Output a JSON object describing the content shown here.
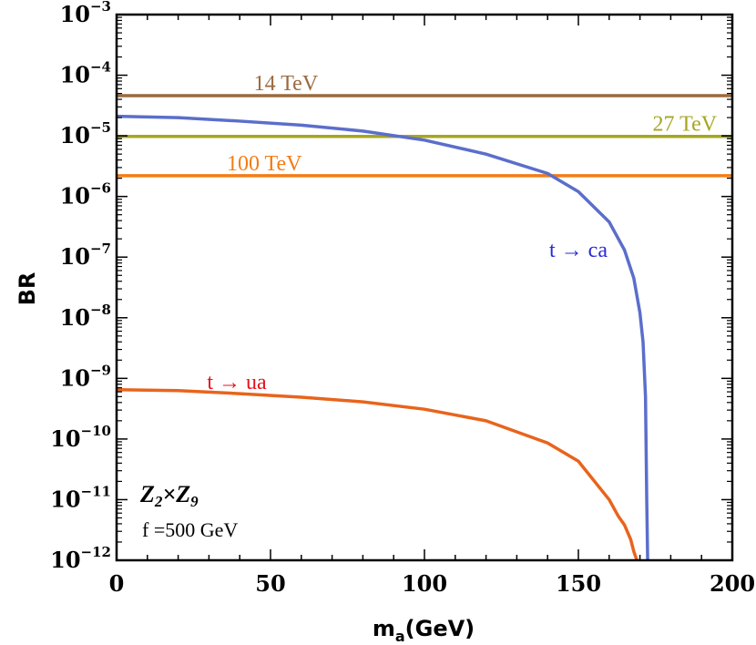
{
  "chart_data": {
    "type": "line",
    "xlabel": "m",
    "xlabel_sub": "a",
    "xlabel_unit": "(GeV)",
    "ylabel": "BR",
    "xlim": [
      0,
      200
    ],
    "ylim_log10": [
      -12,
      -3
    ],
    "y_scale": "log",
    "x_ticks": [
      0,
      50,
      100,
      150,
      200
    ],
    "x_tick_labels": [
      "0",
      "50",
      "100",
      "150",
      "200"
    ],
    "y_ticks_exp": [
      -3,
      -4,
      -5,
      -6,
      -7,
      -8,
      -9,
      -10,
      -11,
      -12
    ],
    "y_tick_base": "10",
    "y_tick_exp_labels": [
      "−3",
      "−4",
      "−5",
      "−6",
      "−7",
      "−8",
      "−9",
      "−10",
      "−11",
      "−12"
    ],
    "limits": [
      {
        "name": "14 TeV",
        "value": 4.6e-05,
        "color": "#9a6a3e",
        "label_x": 55
      },
      {
        "name": "27 TeV",
        "value": 9.8e-06,
        "color": "#a6a620",
        "label_x": 195
      },
      {
        "name": "100 TeV",
        "value": 2.2e-06,
        "color": "#f47c14",
        "label_x": 48
      }
    ],
    "series": [
      {
        "name": "t → ca",
        "color": "#5b6ecc",
        "label_color": "#2a2ad8",
        "x": [
          0,
          20,
          40,
          60,
          80,
          100,
          120,
          140,
          150,
          160,
          165,
          168,
          170,
          171,
          171.8,
          172.2,
          172.5
        ],
        "y": [
          2.1e-05,
          2e-05,
          1.75e-05,
          1.5e-05,
          1.2e-05,
          8.5e-06,
          5e-06,
          2.4e-06,
          1.2e-06,
          3.8e-07,
          1.3e-07,
          4.5e-08,
          1.2e-08,
          4e-09,
          5e-10,
          1e-11,
          1e-12
        ]
      },
      {
        "name": "t → ua",
        "color": "#e8641c",
        "label_color": "#e8101c",
        "x": [
          0,
          20,
          40,
          60,
          80,
          100,
          120,
          140,
          150,
          160,
          163,
          165,
          167,
          168,
          169
        ],
        "y": [
          6.5e-10,
          6.3e-10,
          5.6e-10,
          4.9e-10,
          4.1e-10,
          3.1e-10,
          2e-10,
          8.6e-11,
          4.3e-11,
          1e-11,
          5.3e-12,
          3.8e-12,
          2.2e-12,
          1.4e-12,
          1e-12
        ]
      }
    ],
    "annotations": {
      "model_base1": "Z",
      "model_sub1": "2",
      "model_times": "×",
      "model_base2": "Z",
      "model_sub2": "9",
      "f_label": "f =500 GeV"
    }
  }
}
